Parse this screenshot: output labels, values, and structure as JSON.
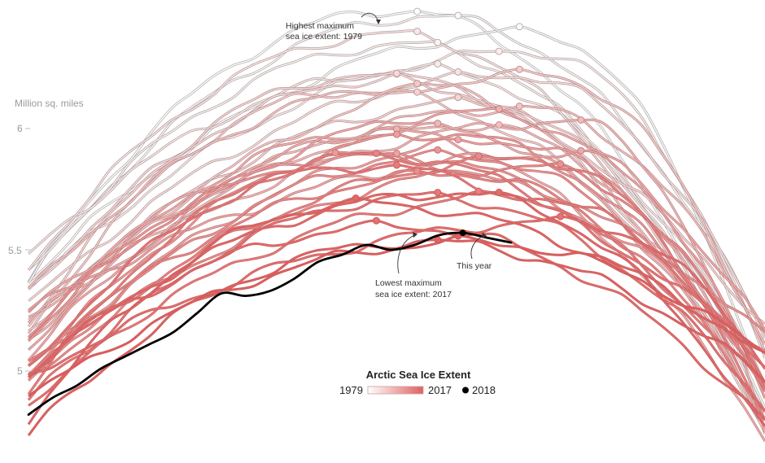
{
  "chart_data": {
    "type": "line",
    "title": "Arctic Sea Ice Extent",
    "ylabel": "Million sq. miles",
    "y_ticks": [
      "6",
      "5.5",
      "5"
    ],
    "ylim": [
      4.75,
      6.5
    ],
    "grid": false,
    "colors": {
      "oldest": "#ffffff",
      "newest": "#e06060",
      "current_year": "#000000",
      "oldest_stroke": "#b5b5b5",
      "newest_stroke": "#cd5a5a"
    },
    "legend": {
      "position": "bottom-center",
      "start_label": "1979",
      "end_label": "2017",
      "current_label": "2018"
    },
    "annotations": {
      "highest": {
        "line1": "Highest maximum",
        "line2": "sea ice extent: 1979",
        "year": 1979,
        "value": 6.4
      },
      "lowest": {
        "line1": "Lowest maximum",
        "line2": "sea ice extent: 2017",
        "year": 2017,
        "value": 5.56
      },
      "current": {
        "text": "This year",
        "year": 2018,
        "value": 5.59
      }
    },
    "series_2018": [
      4.82,
      4.89,
      4.94,
      5.01,
      5.06,
      5.11,
      5.16,
      5.24,
      5.32,
      5.31,
      5.33,
      5.38,
      5.45,
      5.48,
      5.52,
      5.5,
      5.52,
      5.56,
      5.57,
      5.55,
      5.53
    ]
  }
}
